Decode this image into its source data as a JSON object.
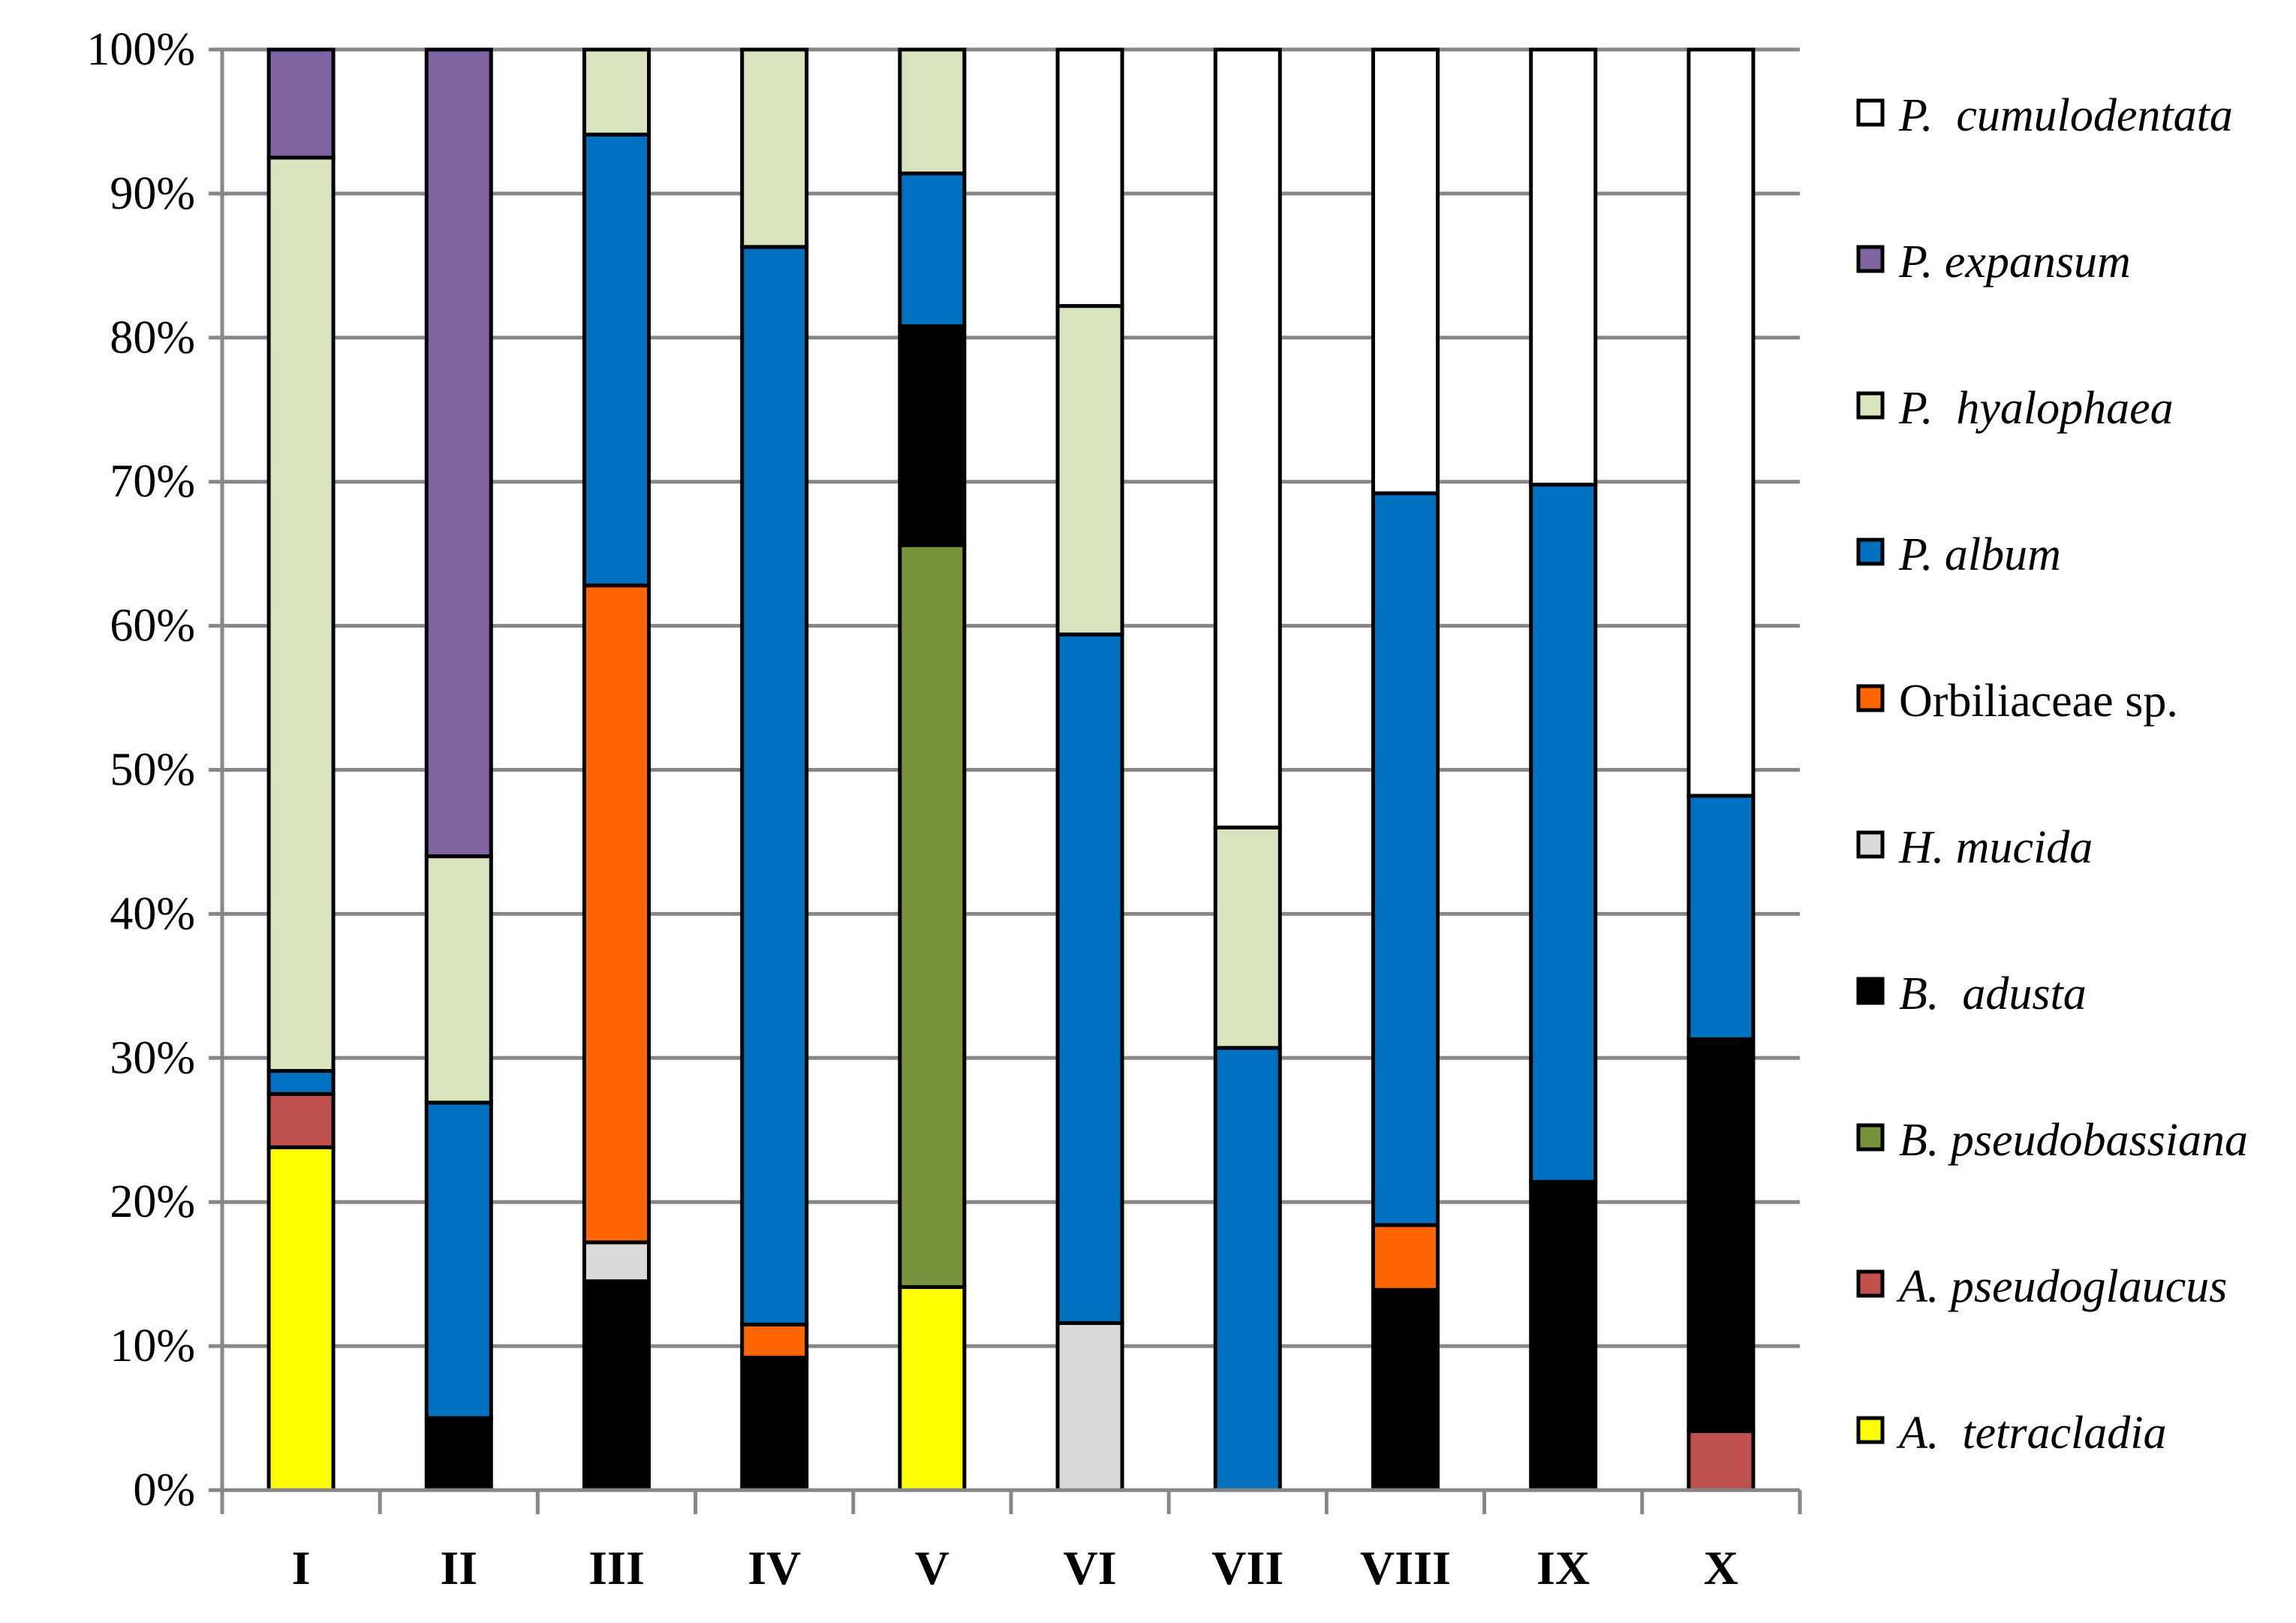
{
  "chart_data": {
    "type": "bar",
    "stacked": true,
    "percent": true,
    "title": "",
    "xlabel": "",
    "ylabel": "",
    "ylim": [
      0,
      100
    ],
    "y_ticks": [
      "0%",
      "10%",
      "20%",
      "30%",
      "40%",
      "50%",
      "60%",
      "70%",
      "80%",
      "90%",
      "100%"
    ],
    "grid": "horizontal",
    "legend_position": "right",
    "categories": [
      "I",
      "II",
      "III",
      "IV",
      "V",
      "VI",
      "VII",
      "VIII",
      "IX",
      "X"
    ],
    "series": [
      {
        "name": "A.  tetracladia",
        "color": "#FFFF00",
        "values": [
          23.8,
          0,
          0,
          0,
          14.1,
          0,
          0,
          0,
          0,
          0
        ]
      },
      {
        "name": "A. pseudoglaucus",
        "color": "#C0504D",
        "values": [
          3.7,
          0,
          0,
          0,
          0,
          0,
          0,
          0,
          0,
          4.1
        ]
      },
      {
        "name": "B. pseudobassiana",
        "color": "#77933C",
        "values": [
          0,
          0,
          0,
          0,
          51.5,
          0,
          0,
          0,
          0,
          0
        ]
      },
      {
        "name": "B.  adusta",
        "color": "#000000",
        "values": [
          0,
          5.0,
          14.5,
          9.2,
          15.2,
          0,
          0,
          13.9,
          21.4,
          27.2
        ]
      },
      {
        "name": "H. mucida",
        "color": "#D9D9D9",
        "values": [
          0,
          0,
          2.7,
          0,
          0,
          11.6,
          0,
          0,
          0,
          0
        ]
      },
      {
        "name": "Orbiliaceae sp.",
        "color": "#FF6600",
        "values": [
          0,
          0,
          45.6,
          2.3,
          0,
          0,
          0,
          4.5,
          0,
          0
        ]
      },
      {
        "name": "P. album",
        "color": "#0070C0",
        "values": [
          1.6,
          21.9,
          31.3,
          74.8,
          10.6,
          47.8,
          30.7,
          50.8,
          48.4,
          16.9
        ]
      },
      {
        "name": "P.  hyalophaea",
        "color": "#D7E4BD",
        "values": [
          63.4,
          17.1,
          5.9,
          13.7,
          8.6,
          22.8,
          15.3,
          0,
          0,
          0
        ]
      },
      {
        "name": "P. expansum",
        "color": "#8064A2",
        "values": [
          7.5,
          56.0,
          0,
          0,
          0,
          0,
          0,
          0,
          0,
          0
        ]
      },
      {
        "name": "P.  cumulodentata",
        "color": "#FFFFFF",
        "values": [
          0,
          0,
          0,
          0,
          0,
          17.8,
          54.0,
          30.8,
          30.2,
          51.8
        ]
      }
    ]
  }
}
